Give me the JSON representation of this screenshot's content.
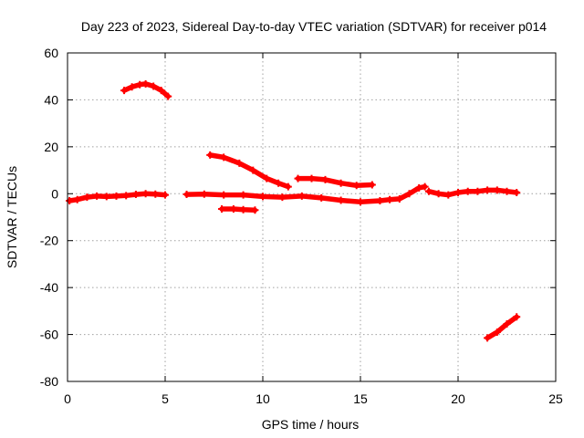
{
  "chart_data": {
    "type": "scatter",
    "title": "Day 223 of 2023, Sidereal Day-to-day VTEC variation (SDTVAR) for receiver p014",
    "xlabel": "GPS time / hours",
    "ylabel": "SDTVAR / TECUs",
    "xlim": [
      0,
      25
    ],
    "ylim": [
      -80,
      60
    ],
    "xticks": [
      0,
      5,
      10,
      15,
      20,
      25
    ],
    "yticks": [
      -80,
      -60,
      -40,
      -20,
      0,
      20,
      40,
      60
    ],
    "grid": true,
    "marker_color": "#ff0000",
    "series": [
      {
        "name": "arc-near-zero-1",
        "points": [
          [
            0.1,
            -3
          ],
          [
            0.5,
            -2.5
          ],
          [
            1.0,
            -1.5
          ],
          [
            1.5,
            -1
          ],
          [
            2.0,
            -1.2
          ],
          [
            2.5,
            -1
          ],
          [
            3.0,
            -0.8
          ],
          [
            3.5,
            -0.3
          ],
          [
            4.0,
            0
          ],
          [
            4.5,
            -0.2
          ],
          [
            5.0,
            -0.5
          ]
        ]
      },
      {
        "name": "arc-high-positive",
        "points": [
          [
            2.9,
            44
          ],
          [
            3.3,
            45.5
          ],
          [
            3.7,
            46.5
          ],
          [
            4.0,
            46.8
          ],
          [
            4.4,
            45.8
          ],
          [
            4.8,
            44
          ],
          [
            5.15,
            41.5
          ]
        ]
      },
      {
        "name": "arc-near-zero-2",
        "points": [
          [
            6.1,
            -0.3
          ],
          [
            7,
            -0.2
          ],
          [
            8,
            -0.5
          ],
          [
            9,
            -0.5
          ],
          [
            10,
            -1.2
          ],
          [
            11,
            -1.5
          ],
          [
            12,
            -1
          ],
          [
            13,
            -1.8
          ],
          [
            14,
            -2.8
          ],
          [
            15,
            -3.5
          ],
          [
            16,
            -3
          ],
          [
            16.5,
            -2.5
          ],
          [
            17,
            -2.2
          ],
          [
            17.5,
            0
          ],
          [
            18,
            2.5
          ],
          [
            18.3,
            3
          ]
        ]
      },
      {
        "name": "arc-descending",
        "points": [
          [
            7.3,
            16.5
          ],
          [
            8,
            15.5
          ],
          [
            8.8,
            13
          ],
          [
            9.5,
            10
          ],
          [
            10.2,
            6.5
          ],
          [
            10.8,
            4.5
          ],
          [
            11.3,
            3
          ]
        ]
      },
      {
        "name": "arc-negative-short",
        "points": [
          [
            7.9,
            -6.5
          ],
          [
            8.5,
            -6.5
          ],
          [
            9,
            -6.8
          ],
          [
            9.6,
            -7
          ]
        ]
      },
      {
        "name": "arc-positive-mid",
        "points": [
          [
            11.8,
            6.5
          ],
          [
            12.5,
            6.5
          ],
          [
            13.2,
            6
          ],
          [
            14,
            4.5
          ],
          [
            14.8,
            3.5
          ],
          [
            15.6,
            3.8
          ]
        ]
      },
      {
        "name": "arc-near-zero-3",
        "points": [
          [
            18.5,
            1
          ],
          [
            19,
            0
          ],
          [
            19.5,
            -0.5
          ],
          [
            20,
            0.5
          ],
          [
            20.5,
            1
          ],
          [
            21,
            1
          ],
          [
            21.5,
            1.5
          ],
          [
            22,
            1.5
          ],
          [
            22.5,
            1
          ],
          [
            23,
            0.5
          ]
        ]
      },
      {
        "name": "arc-low-negative",
        "points": [
          [
            21.5,
            -61.5
          ],
          [
            22,
            -59
          ],
          [
            22.5,
            -55.5
          ],
          [
            23,
            -52.5
          ]
        ]
      }
    ]
  }
}
